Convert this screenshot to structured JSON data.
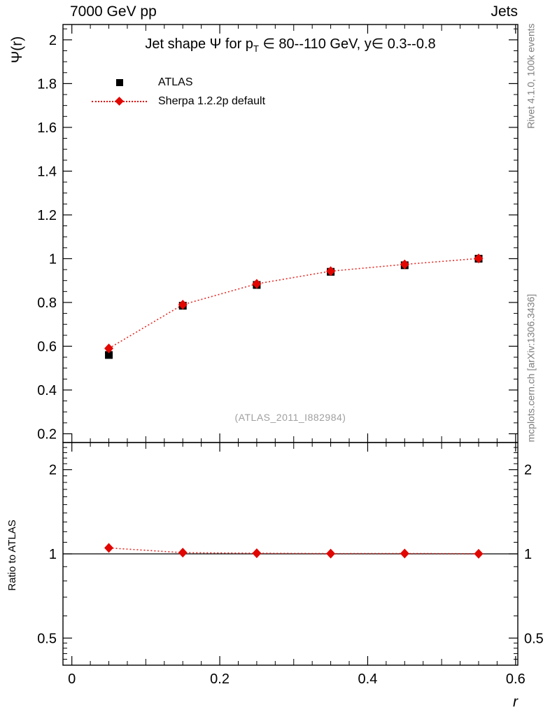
{
  "header": {
    "beam_label": "7000 GeV pp",
    "analysis_label": "Jets"
  },
  "side_labels": {
    "rivet": "Rivet 4.1.0, 100k events",
    "mcplots": "mcplots.cern.ch [arXiv:1306.3436]"
  },
  "main_panel": {
    "title_prefix": "Jet shape Ψ for p",
    "title_sub": "T",
    "title_suffix": " ∈ 80--110 GeV, y∈ 0.3--0.8",
    "ylabel": "Ψ(r)",
    "watermark": "(ATLAS_2011_I882984)"
  },
  "ratio_panel": {
    "ylabel": "Ratio to ATLAS"
  },
  "x_axis": {
    "label": "r"
  },
  "legend": {
    "entries": [
      {
        "label": "ATLAS",
        "marker": "square",
        "color": "#000000",
        "line": "none"
      },
      {
        "label": "Sherpa 1.2.2p default",
        "marker": "diamond",
        "color": "#e10600",
        "line": "dotted"
      }
    ]
  },
  "colors": {
    "atlas": "#000000",
    "sherpa": "#e10600",
    "watermark": "#9f9f9f",
    "side_text": "#7d7d7d"
  },
  "chart_data": [
    {
      "type": "scatter",
      "title": "Jet shape Ψ for p_T ∈ 80--110 GeV, y∈ 0.3--0.8",
      "xlabel": "r",
      "ylabel": "Ψ(r)",
      "xlim": [
        -0.012,
        0.603
      ],
      "ylim": [
        0.16,
        2.07
      ],
      "yscale": "linear",
      "grid": false,
      "legend_position": "top-left",
      "xticks": [
        0,
        0.2,
        0.4,
        0.6
      ],
      "xminor_step": 0.025,
      "yticks": [
        0.2,
        0.4,
        0.6,
        0.8,
        1,
        1.2,
        1.4,
        1.6,
        1.8,
        2
      ],
      "yminor_step": 0.05,
      "x": [
        0.05,
        0.15,
        0.25,
        0.35,
        0.45,
        0.55
      ],
      "series": [
        {
          "name": "ATLAS",
          "marker": "square",
          "color": "#000000",
          "line": "none",
          "values": [
            0.56,
            0.785,
            0.88,
            0.94,
            0.97,
            1.0
          ]
        },
        {
          "name": "Sherpa 1.2.2p default",
          "marker": "diamond",
          "color": "#e10600",
          "line": "dotted",
          "values": [
            0.59,
            0.79,
            0.885,
            0.943,
            0.974,
            1.001
          ]
        }
      ]
    },
    {
      "type": "scatter",
      "title": "Ratio to ATLAS",
      "xlabel": "r",
      "ylabel": "Ratio to ATLAS",
      "xlim": [
        -0.012,
        0.603
      ],
      "ylim": [
        0.4,
        2.5
      ],
      "yscale": "log",
      "grid": false,
      "refline_y": 1,
      "xticks": [
        0,
        0.2,
        0.4,
        0.6
      ],
      "xminor_step": 0.025,
      "yticks": [
        0.5,
        1,
        2
      ],
      "yminors": [
        0.42,
        0.44,
        0.46,
        0.48,
        0.6,
        0.7,
        0.8,
        0.9,
        1.1,
        1.2,
        1.3,
        1.4,
        1.5,
        1.6,
        1.7,
        1.8,
        1.9,
        2.1,
        2.2,
        2.3,
        2.4
      ],
      "x": [
        0.05,
        0.15,
        0.25,
        0.35,
        0.45,
        0.55
      ],
      "series": [
        {
          "name": "Sherpa 1.2.2p default / ATLAS",
          "marker": "diamond",
          "color": "#e10600",
          "line": "dotted",
          "values": [
            1.05,
            1.01,
            1.005,
            1.002,
            1.003,
            1.001
          ]
        }
      ]
    }
  ]
}
